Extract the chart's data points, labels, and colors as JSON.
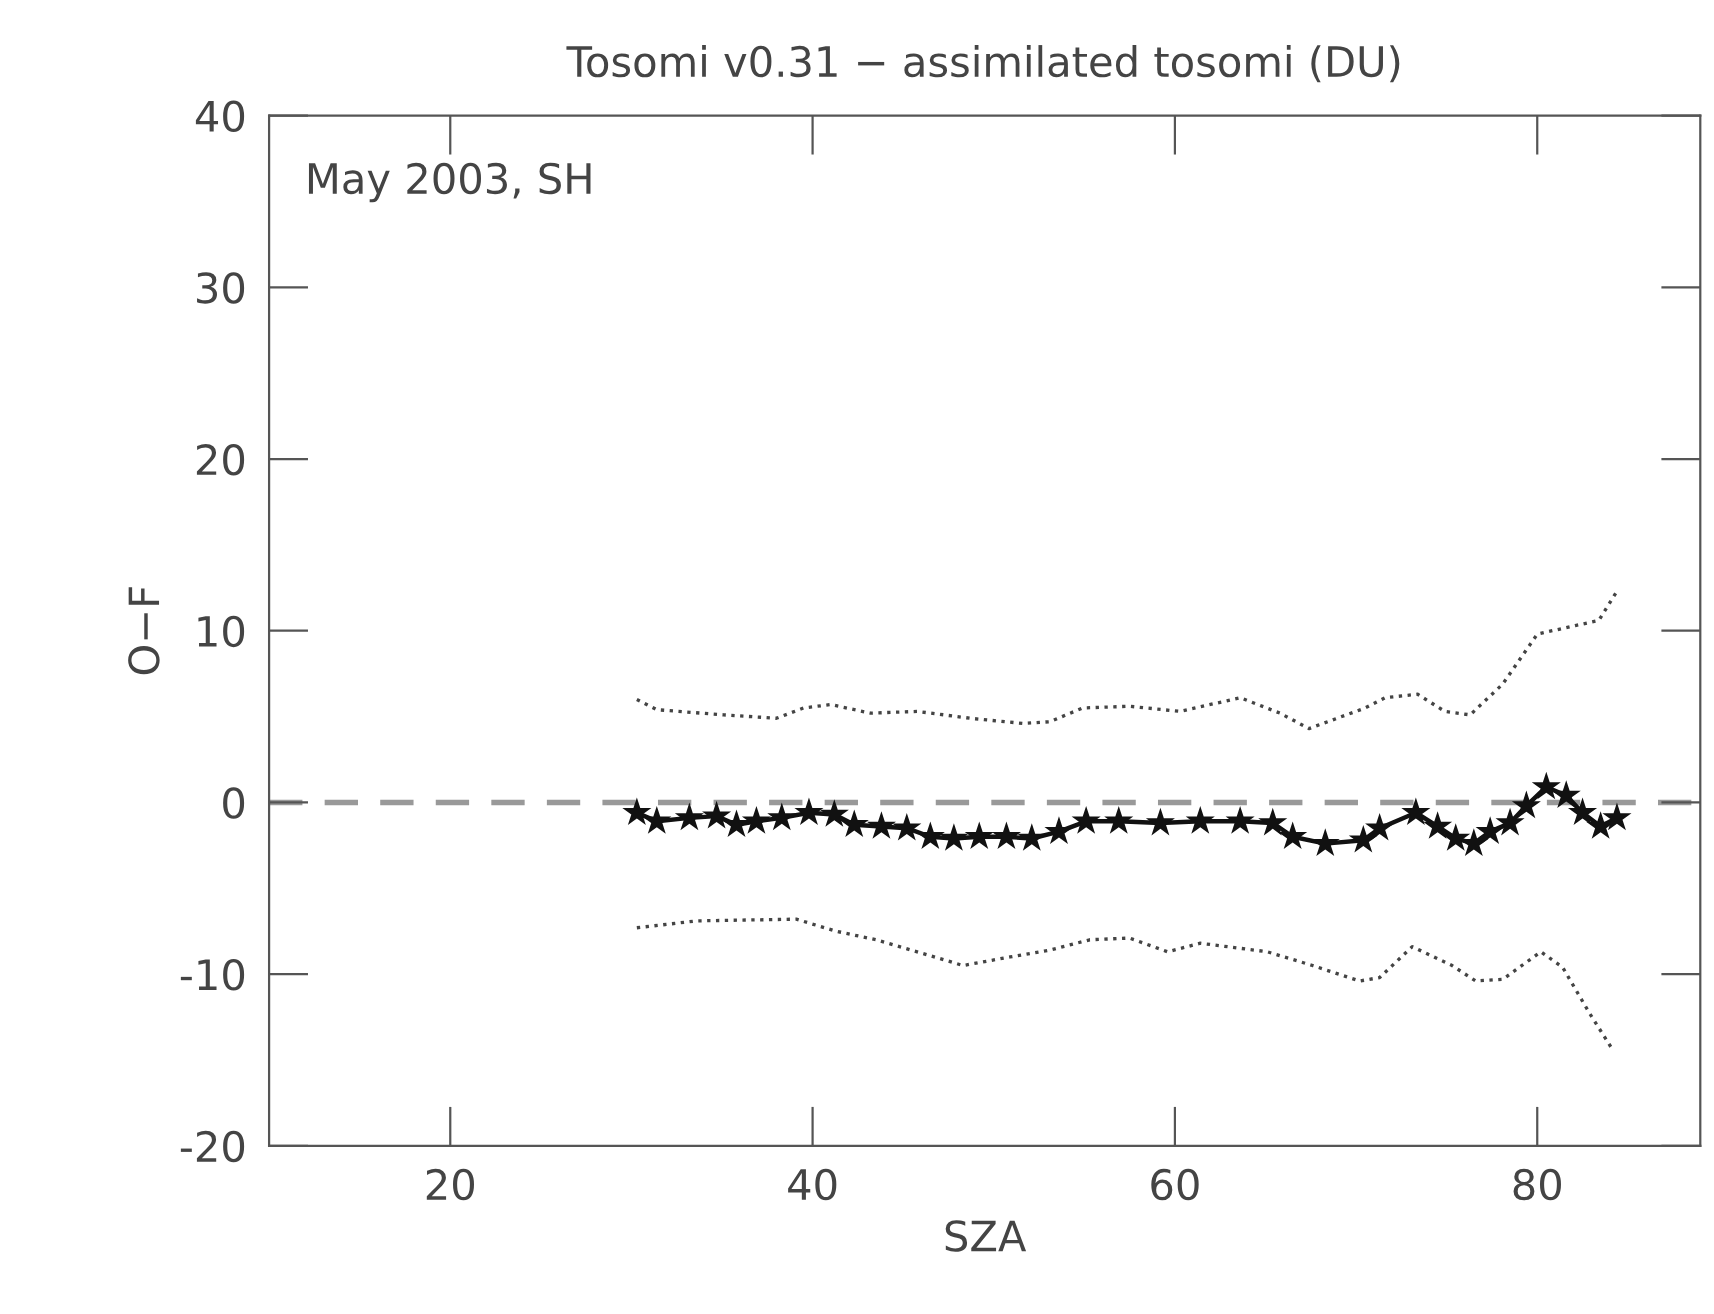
{
  "chart_data": {
    "type": "line",
    "title": "Tosomi v0.31 − assimilated tosomi (DU)",
    "xlabel": "SZA",
    "ylabel": "O−F",
    "annotations": [
      "May 2003, SH"
    ],
    "xlim": [
      10,
      89
    ],
    "xticks": [
      20,
      40,
      60,
      80
    ],
    "ylim": [
      -20,
      40
    ],
    "yticks": [
      -20,
      -10,
      0,
      10,
      20,
      30,
      40
    ],
    "grid": false,
    "legend": false,
    "ref_lines": [
      {
        "axis": "y",
        "value": 0,
        "color": "#999999",
        "line_style": "dashed"
      }
    ],
    "series": [
      {
        "color": "#111111",
        "marker": "star",
        "line_style": "solid",
        "x": [
          30.3,
          31.4,
          33.2,
          34.7,
          35.8,
          36.9,
          38.3,
          39.8,
          41.2,
          42.3,
          43.8,
          45.2,
          46.5,
          47.8,
          49.2,
          50.7,
          52.1,
          53.6,
          55.1,
          56.9,
          59.2,
          61.4,
          63.6,
          65.4,
          66.5,
          68.3,
          70.4,
          71.3,
          73.3,
          74.5,
          75.5,
          76.5,
          77.4,
          78.5,
          79.4,
          80.5,
          81.6,
          82.5,
          83.5,
          84.4
        ],
        "values": [
          -0.6,
          -1.1,
          -0.9,
          -0.8,
          -1.3,
          -1.1,
          -0.9,
          -0.6,
          -0.7,
          -1.3,
          -1.4,
          -1.5,
          -2.0,
          -2.1,
          -2.0,
          -2.0,
          -2.1,
          -1.7,
          -1.1,
          -1.1,
          -1.2,
          -1.1,
          -1.1,
          -1.2,
          -2.0,
          -2.4,
          -2.2,
          -1.5,
          -0.6,
          -1.4,
          -2.1,
          -2.4,
          -1.7,
          -1.2,
          -0.2,
          0.9,
          0.4,
          -0.6,
          -1.4,
          -0.9
        ]
      },
      {
        "color": "#444444",
        "marker": "none",
        "line_style": "dotted",
        "x": [
          30.3,
          31.4,
          35.1,
          38.0,
          39.5,
          41.0,
          43.2,
          45.8,
          48.7,
          51.6,
          53.1,
          54.9,
          57.5,
          60.3,
          63.6,
          65.8,
          67.4,
          70.5,
          71.6,
          73.4,
          74.9,
          76.3,
          78.1,
          80.0,
          82.1,
          83.4,
          84.4
        ],
        "values": [
          6.0,
          5.4,
          5.1,
          4.9,
          5.5,
          5.7,
          5.2,
          5.3,
          4.9,
          4.6,
          4.7,
          5.5,
          5.6,
          5.3,
          6.1,
          5.2,
          4.3,
          5.5,
          6.1,
          6.3,
          5.3,
          5.1,
          6.9,
          9.8,
          10.3,
          10.6,
          12.3
        ]
      },
      {
        "color": "#444444",
        "marker": "none",
        "line_style": "dotted",
        "x": [
          30.3,
          33.6,
          39.1,
          41.3,
          43.5,
          46.1,
          48.3,
          50.9,
          53.1,
          55.3,
          57.5,
          59.6,
          61.4,
          65.1,
          67.6,
          70.2,
          71.3,
          73.1,
          75.3,
          76.6,
          78.1,
          80.2,
          81.4,
          82.9,
          84.1
        ],
        "values": [
          -7.3,
          -6.9,
          -6.8,
          -7.5,
          -8.0,
          -8.8,
          -9.5,
          -9.0,
          -8.6,
          -8.0,
          -7.9,
          -8.7,
          -8.2,
          -8.7,
          -9.5,
          -10.4,
          -10.2,
          -8.4,
          -9.5,
          -10.4,
          -10.3,
          -8.7,
          -9.6,
          -12.3,
          -14.3
        ]
      }
    ]
  }
}
